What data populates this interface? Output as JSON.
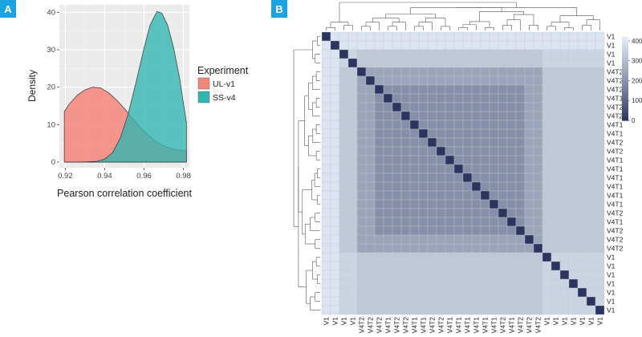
{
  "colors": {
    "badge": "#1aa3e0",
    "panel_bg": "#ebebeb",
    "ul_fill": "#f4867c",
    "ss_fill": "#2fb6b2",
    "heat_low": "#2a3560",
    "heat_high": "#e3ecf6",
    "dendro": "#555555"
  },
  "panel_a": {
    "badge": "A",
    "chart_data": {
      "type": "area",
      "x_axis": "Pearson correlation coefficient",
      "y_axis": "Density",
      "xlim": [
        0.917,
        0.983
      ],
      "ylim": [
        -1.5,
        42
      ],
      "xticks": [
        0.92,
        0.94,
        0.96,
        0.98
      ],
      "xtick_labels": [
        "0.92",
        "0.94",
        "0.96",
        "0.98"
      ],
      "yticks": [
        0,
        10,
        20,
        30,
        40
      ],
      "ytick_labels": [
        "0",
        "10",
        "20",
        "30",
        "40"
      ],
      "grid": true,
      "legend_title": "Experiment",
      "legend_position": "right",
      "series": [
        {
          "name": "UL-v1",
          "color_key": "ul_fill",
          "points": [
            [
              0.9195,
              13.5
            ],
            [
              0.922,
              15.5
            ],
            [
              0.926,
              17.8
            ],
            [
              0.93,
              19.3
            ],
            [
              0.934,
              20.0
            ],
            [
              0.938,
              19.8
            ],
            [
              0.942,
              18.5
            ],
            [
              0.946,
              16.6
            ],
            [
              0.95,
              14.3
            ],
            [
              0.954,
              11.8
            ],
            [
              0.958,
              9.3
            ],
            [
              0.962,
              7.2
            ],
            [
              0.966,
              5.5
            ],
            [
              0.97,
              4.3
            ],
            [
              0.974,
              3.6
            ],
            [
              0.978,
              3.2
            ],
            [
              0.9815,
              3.1
            ]
          ]
        },
        {
          "name": "SS-v4",
          "color_key": "ss_fill",
          "points": [
            [
              0.9195,
              0.0
            ],
            [
              0.93,
              0.05
            ],
            [
              0.936,
              0.2
            ],
            [
              0.94,
              0.8
            ],
            [
              0.944,
              2.5
            ],
            [
              0.948,
              6.5
            ],
            [
              0.952,
              13.0
            ],
            [
              0.956,
              21.5
            ],
            [
              0.96,
              30.5
            ],
            [
              0.963,
              36.5
            ],
            [
              0.9665,
              40.2
            ],
            [
              0.969,
              39.8
            ],
            [
              0.972,
              36.5
            ],
            [
              0.975,
              30.5
            ],
            [
              0.978,
              22.5
            ],
            [
              0.9815,
              10.5
            ]
          ]
        }
      ]
    }
  },
  "panel_b": {
    "badge": "B",
    "chart_data": {
      "type": "heatmap",
      "row_labels": [
        "V1",
        "V1",
        "V1",
        "V1",
        "V4T2",
        "V4T2",
        "V4T2",
        "V4T1",
        "V4T2",
        "V4T2",
        "V4T1",
        "V4T1",
        "V4T2",
        "V4T2",
        "V4T1",
        "V4T1",
        "V4T1",
        "V4T1",
        "V4T1",
        "V4T1",
        "V4T2",
        "V4T1",
        "V4T2",
        "V4T2",
        "V4T2",
        "V1",
        "V1",
        "V1",
        "V1",
        "V1",
        "V1",
        "V1"
      ],
      "col_labels": [
        "V1",
        "V1",
        "V1",
        "V1",
        "V4T2",
        "V4T2",
        "V4T2",
        "V4T1",
        "V4T2",
        "V4T2",
        "V4T1",
        "V4T1",
        "V4T2",
        "V4T2",
        "V4T1",
        "V4T1",
        "V4T1",
        "V4T1",
        "V4T1",
        "V4T1",
        "V4T2",
        "V4T1",
        "V4T2",
        "V4T2",
        "V4T2",
        "V1",
        "V1",
        "V1",
        "V1",
        "V1",
        "V1",
        "V1"
      ],
      "colorbar_ticks": [
        0,
        100,
        200,
        300,
        400
      ],
      "colorbar_labels": [
        "0",
        "100",
        "200",
        "300",
        "400"
      ],
      "value_range": [
        0,
        420
      ],
      "diagonal_value": 0,
      "value_rules": {
        "v4_vs_v4": 190,
        "v4_vs_v4_edge": 240,
        "v1_vs_v4": 330,
        "v1_vs_v1": 360,
        "first_v1_rows": 400
      }
    }
  }
}
